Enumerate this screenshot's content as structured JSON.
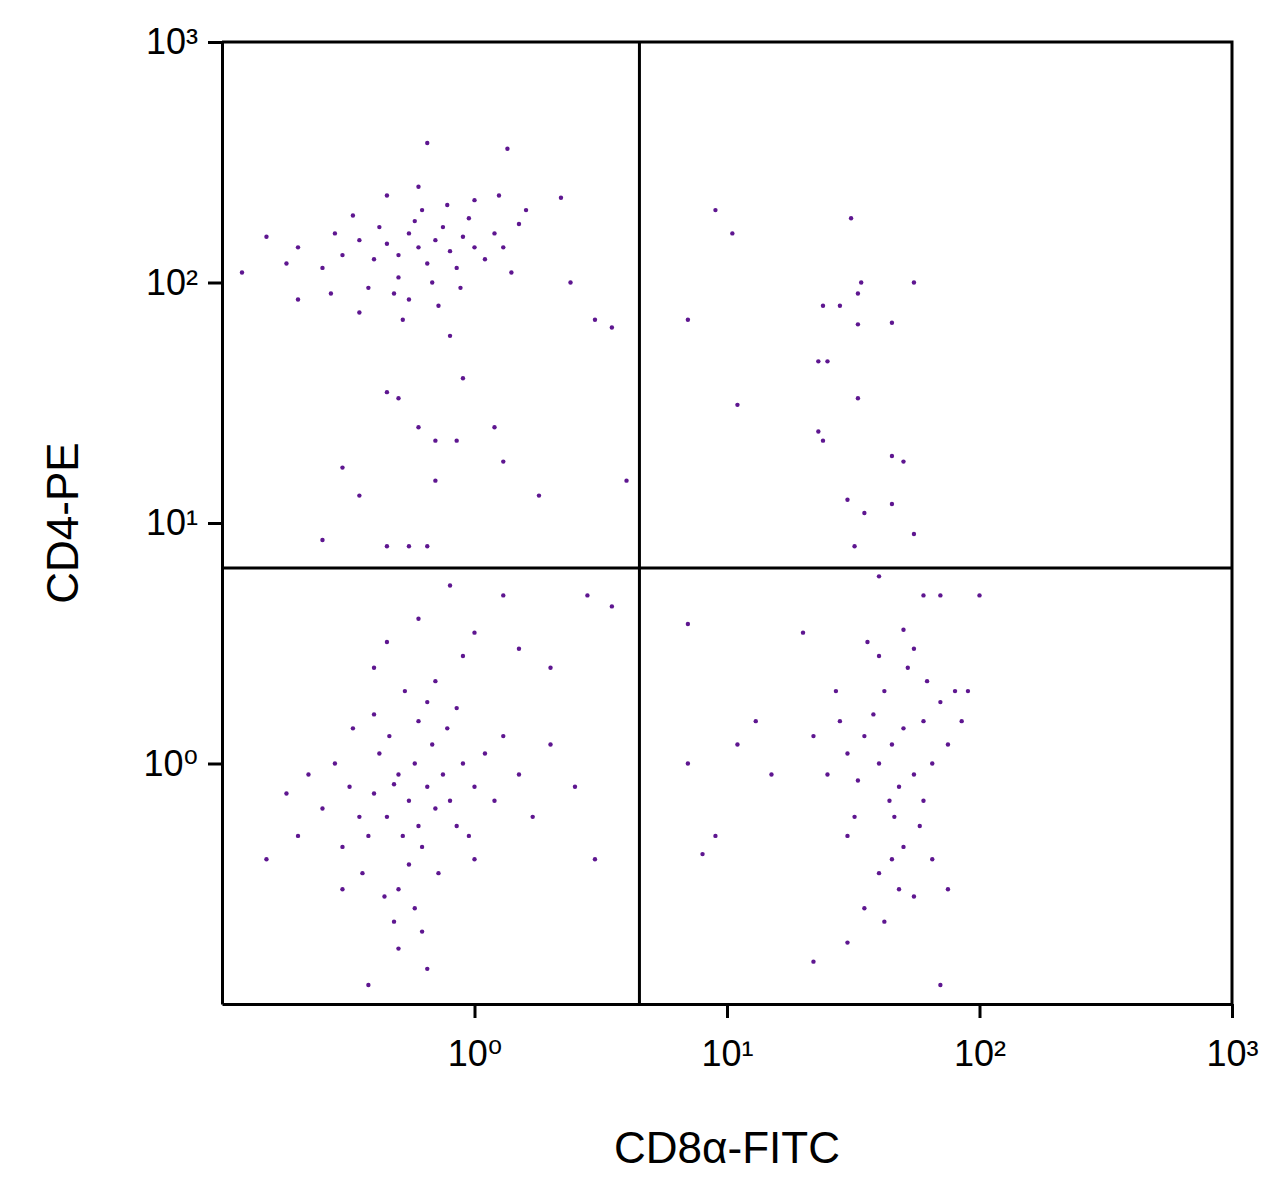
{
  "chart_data": {
    "type": "scatter",
    "x_label": "CD8α-FITC",
    "y_label": "CD4-PE",
    "log": true,
    "color": "#5e1690",
    "marker": "dot",
    "xlim": [
      0.1,
      1000
    ],
    "ylim": [
      0.1,
      1000
    ],
    "xticks": [
      {
        "value": 1,
        "label": "10⁰"
      },
      {
        "value": 10,
        "label": "10¹"
      },
      {
        "value": 100,
        "label": "10²"
      },
      {
        "value": 1000,
        "label": "10³"
      }
    ],
    "yticks": [
      {
        "value": 1,
        "label": "10⁰"
      },
      {
        "value": 10,
        "label": "10¹"
      },
      {
        "value": 100,
        "label": "10²"
      },
      {
        "value": 1000,
        "label": "10³"
      }
    ],
    "gate_x": 4.5,
    "gate_y": 6.5,
    "x": [
      0.55,
      0.45,
      0.65,
      0.5,
      0.6,
      0.4,
      0.7,
      0.52,
      0.58,
      0.48,
      0.35,
      0.75,
      0.62,
      0.42,
      0.8,
      0.38,
      0.68,
      0.55,
      0.46,
      0.85,
      0.32,
      0.9,
      0.5,
      0.6,
      0.3,
      1.0,
      0.72,
      0.4,
      0.95,
      0.28,
      0.65,
      0.44,
      1.1,
      0.25,
      0.78,
      0.36,
      1.2,
      0.53,
      0.58,
      0.22,
      1.3,
      0.48,
      0.7,
      0.33,
      1.0,
      0.2,
      0.85,
      0.62,
      1.5,
      0.4,
      0.18,
      1.7,
      0.5,
      0.9,
      0.3,
      2.0,
      0.15,
      0.65,
      2.5,
      0.45,
      0.6,
      0.8,
      1.3,
      2.8,
      3.5,
      1.5,
      2.0,
      3.0,
      1.0,
      0.38,
      0.6,
      0.5,
      0.7,
      0.55,
      0.8,
      0.45,
      0.65,
      0.75,
      0.4,
      0.9,
      0.35,
      0.85,
      0.58,
      0.5,
      1.0,
      0.3,
      0.95,
      0.42,
      0.68,
      1.1,
      0.28,
      0.62,
      0.48,
      1.2,
      0.25,
      0.78,
      0.38,
      1.3,
      0.2,
      0.55,
      0.88,
      0.33,
      1.0,
      0.72,
      0.18,
      0.45,
      1.4,
      0.6,
      0.15,
      1.5,
      0.27,
      0.52,
      1.25,
      0.12,
      0.65,
      1.35,
      0.35,
      0.2,
      0.8,
      1.6,
      0.45,
      0.5,
      0.6,
      0.7,
      0.85,
      0.9,
      0.3,
      0.35,
      0.45,
      0.55,
      0.65,
      0.7,
      1.2,
      1.3,
      1.8,
      0.25,
      4,
      3,
      2.2,
      3.5,
      2.4,
      45,
      40,
      50,
      38,
      55,
      42,
      48,
      35,
      60,
      44,
      30,
      52,
      46,
      65,
      33,
      40,
      58,
      28,
      70,
      50,
      36,
      62,
      25,
      45,
      75,
      32,
      55,
      22,
      48,
      80,
      40,
      60,
      27,
      50,
      35,
      65,
      42,
      55,
      85,
      30,
      7,
      9,
      8,
      13,
      11,
      20,
      7,
      15,
      22,
      30,
      70,
      100,
      90,
      60,
      70,
      40,
      75,
      9,
      10.5,
      7,
      31,
      34,
      33,
      55,
      28,
      24,
      33,
      45,
      11,
      23,
      25,
      33,
      23,
      24,
      30,
      35,
      45,
      45,
      50,
      55,
      32
    ],
    "values": [
      0.7,
      0.6,
      0.8,
      0.9,
      0.55,
      0.75,
      0.65,
      0.5,
      1.0,
      0.82,
      0.6,
      0.9,
      0.45,
      1.1,
      0.7,
      0.5,
      1.2,
      0.38,
      1.3,
      0.55,
      0.8,
      1.0,
      0.3,
      1.5,
      0.45,
      0.8,
      0.35,
      1.6,
      0.5,
      1.0,
      1.8,
      0.28,
      1.1,
      0.65,
      1.4,
      0.35,
      0.7,
      2.0,
      0.25,
      0.9,
      1.3,
      0.22,
      2.2,
      1.4,
      0.4,
      0.5,
      1.7,
      0.2,
      0.9,
      2.5,
      0.75,
      0.6,
      0.17,
      2.8,
      0.3,
      1.2,
      0.4,
      0.14,
      0.8,
      3.2,
      4.0,
      5.5,
      5.0,
      5.0,
      4.5,
      3.0,
      2.5,
      0.4,
      3.5,
      0.12,
      140,
      130,
      150,
      160,
      135,
      145,
      120,
      170,
      125,
      155,
      150,
      115,
      180,
      105,
      140,
      130,
      185,
      170,
      100,
      125,
      160,
      200,
      90,
      160,
      115,
      210,
      95,
      140,
      140,
      85,
      95,
      190,
      220,
      80,
      120,
      230,
      110,
      250,
      155,
      175,
      90,
      70,
      230,
      110,
      380,
      360,
      75,
      85,
      60,
      200,
      35,
      33,
      25,
      22,
      22,
      40,
      17,
      13,
      8,
      8,
      8,
      15,
      25,
      18,
      13,
      8.5,
      15,
      70,
      225,
      65,
      100,
      1.2,
      1.0,
      1.4,
      1.6,
      0.9,
      2.0,
      0.8,
      1.3,
      1.5,
      0.7,
      1.1,
      2.5,
      0.6,
      1.0,
      0.85,
      2.8,
      0.55,
      1.5,
      1.8,
      0.45,
      3.2,
      2.2,
      0.9,
      0.4,
      1.2,
      0.6,
      3.0,
      1.3,
      0.3,
      2.0,
      0.35,
      0.7,
      2.0,
      3.6,
      0.25,
      0.4,
      0.22,
      0.28,
      1.5,
      0.5,
      3.8,
      0.5,
      0.42,
      1.5,
      1.2,
      3.5,
      1.0,
      0.9,
      0.15,
      0.18,
      0.12,
      5.0,
      2.0,
      5.0,
      5.0,
      6.0,
      0.3,
      200,
      160,
      70,
      185,
      100,
      90,
      100,
      80,
      80,
      67,
      68,
      31,
      47,
      47,
      33,
      24,
      22,
      12.5,
      11,
      12,
      19,
      18,
      9,
      8
    ]
  }
}
